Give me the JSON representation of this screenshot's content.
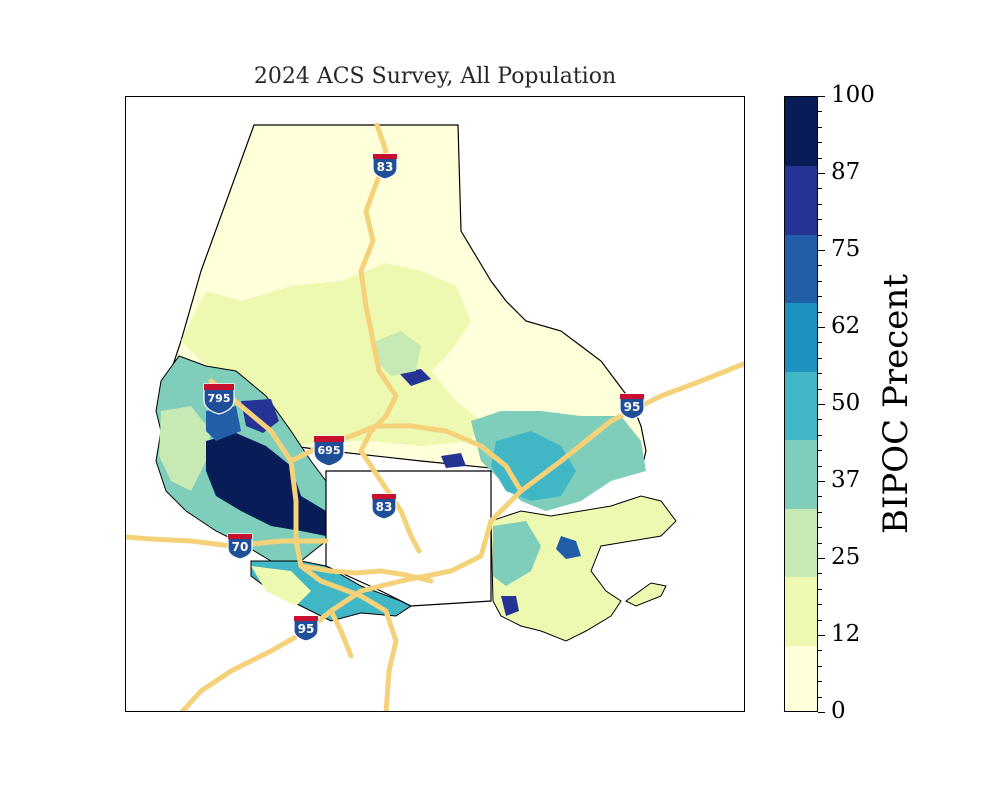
{
  "map": {
    "title": "2024 ACS Survey, All Population",
    "colorbar": {
      "label": "BIPOC Precent",
      "ticks": [
        "0",
        "12",
        "25",
        "37",
        "50",
        "62",
        "75",
        "87",
        "100"
      ],
      "colors": [
        "#ffffd9",
        "#edf8b1",
        "#c7e9b4",
        "#7fcdbb",
        "#41b6c4",
        "#1d91c0",
        "#225ea8",
        "#253494",
        "#081d58"
      ],
      "range": [
        0,
        100
      ]
    },
    "interstate_labels": [
      "795",
      "695",
      "83",
      "83",
      "70",
      "95",
      "95"
    ],
    "colors": {
      "highway": "#f5d27a",
      "county_outline": "#000000",
      "city_fill": "#ffffff"
    }
  }
}
